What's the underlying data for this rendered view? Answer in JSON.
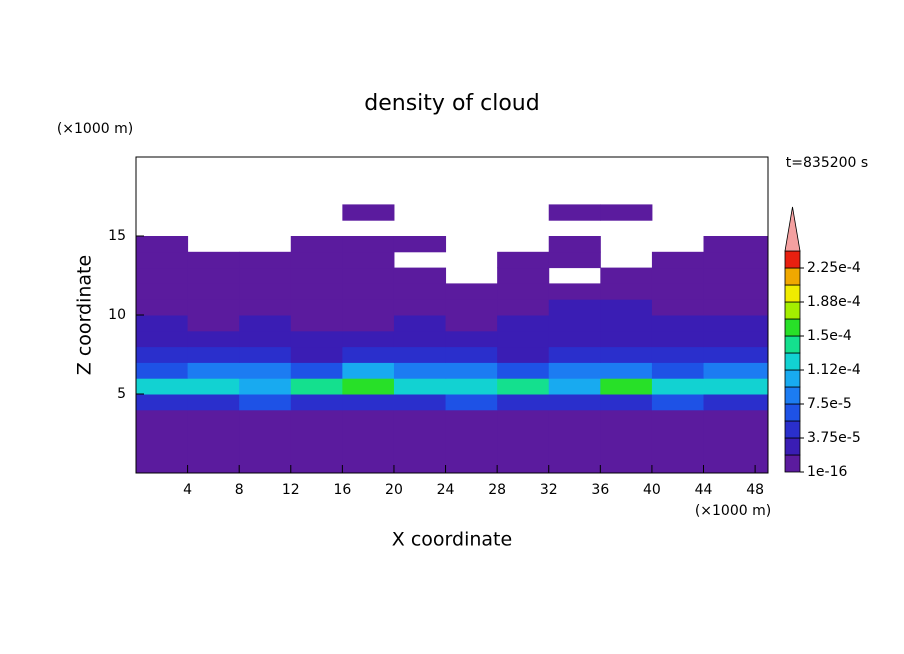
{
  "chart_data": {
    "type": "contour",
    "title": "density of cloud",
    "xlabel": "X coordinate",
    "ylabel": "Z coordinate",
    "x_unit": "(×1000 m)",
    "y_unit": "(×1000 m)",
    "time_label": "t=835200 s",
    "xlim": [
      0,
      49
    ],
    "ylim": [
      0,
      20
    ],
    "xticks": [
      4,
      8,
      12,
      16,
      20,
      24,
      28,
      32,
      36,
      40,
      44,
      48
    ],
    "yticks": [
      5,
      10,
      15
    ],
    "x": [
      2,
      6,
      10,
      14,
      18,
      22,
      26,
      30,
      34,
      38,
      42,
      46
    ],
    "y": [
      3.5,
      4.5,
      5.5,
      6.5,
      7.5,
      8.5,
      9.5,
      10.5,
      11.5,
      12.5,
      13.5,
      14.5,
      15.5,
      16.5,
      17.5
    ],
    "z": [
      [
        2e-06,
        3e-06,
        2e-06,
        2e-06,
        3e-06,
        2e-06,
        2e-06,
        2e-06,
        3e-06,
        2e-06,
        2e-06,
        3e-06
      ],
      [
        5e-05,
        4e-05,
        6e-05,
        5e-05,
        4e-05,
        5e-05,
        6e-05,
        4e-05,
        5e-05,
        4e-05,
        6e-05,
        5e-05
      ],
      [
        0.00013,
        0.00012,
        0.00011,
        0.00014,
        0.00016,
        0.00013,
        0.00012,
        0.00014,
        0.00011,
        0.00015,
        0.00012,
        0.00013
      ],
      [
        7e-05,
        9e-05,
        8e-05,
        7e-05,
        0.0001,
        9e-05,
        8e-05,
        7e-05,
        8e-05,
        9e-05,
        7e-05,
        8e-05
      ],
      [
        4e-05,
        4.5e-05,
        4e-05,
        3.5e-05,
        4e-05,
        4.5e-05,
        4e-05,
        3.5e-05,
        4e-05,
        4.5e-05,
        4e-05,
        4e-05
      ],
      [
        2.5e-05,
        2.2e-05,
        2.5e-05,
        2.2e-05,
        2.4e-05,
        2e-05,
        2.5e-05,
        2.2e-05,
        2.4e-05,
        2.5e-05,
        2.2e-05,
        2.5e-05
      ],
      [
        2e-05,
        1e-05,
        2e-05,
        1.5e-05,
        1e-05,
        2e-05,
        1.5e-05,
        2e-05,
        2e-05,
        2.2e-05,
        2e-05,
        2e-05
      ],
      [
        1e-05,
        1e-05,
        1.5e-05,
        1e-05,
        1e-05,
        1e-05,
        1e-05,
        1.5e-05,
        2e-05,
        2e-05,
        1.5e-05,
        1e-05
      ],
      [
        5e-06,
        5e-06,
        5e-06,
        5e-06,
        5e-06,
        5e-06,
        5e-06,
        5e-06,
        5e-06,
        5e-06,
        5e-06,
        5e-06
      ],
      [
        5e-06,
        5e-06,
        5e-06,
        5e-06,
        5e-06,
        5e-06,
        0,
        5e-06,
        0,
        5e-06,
        5e-06,
        5e-06
      ],
      [
        3e-06,
        3e-06,
        3e-06,
        3e-06,
        3e-06,
        0,
        0,
        3e-06,
        3e-06,
        0,
        3e-06,
        3e-06
      ],
      [
        3e-06,
        0,
        0,
        3e-06,
        3e-06,
        3e-06,
        0,
        0,
        3e-06,
        0,
        0,
        3e-06
      ],
      [
        0,
        0,
        0,
        0,
        0,
        0,
        0,
        0,
        0,
        0,
        0,
        0
      ],
      [
        0,
        0,
        0,
        0,
        2e-06,
        0,
        0,
        0,
        2e-06,
        2e-06,
        0,
        0
      ],
      [
        0,
        0,
        0,
        0,
        0,
        0,
        0,
        0,
        0,
        0,
        0,
        0
      ]
    ],
    "levels": [
      1e-16,
      1.875e-05,
      3.75e-05,
      5.625e-05,
      7.5e-05,
      9.375e-05,
      0.0001125,
      0.00013125,
      0.00015,
      0.00016875,
      0.0001875,
      0.00020625,
      0.000225,
      0.00024375
    ],
    "colors": [
      "#5b1b9e",
      "#3a1db4",
      "#2a2fcc",
      "#1e52e6",
      "#1c7cf2",
      "#18aaf0",
      "#12d2d2",
      "#14e08e",
      "#28e028",
      "#a4ee00",
      "#f0ec00",
      "#f0a800",
      "#e82010"
    ],
    "extend_color": "#f4a0a0",
    "cbar_ticks": [
      {
        "value": 1e-16,
        "label": "1e-16"
      },
      {
        "value": 3.75e-05,
        "label": "3.75e-5"
      },
      {
        "value": 7.5e-05,
        "label": "7.5e-5"
      },
      {
        "value": 0.0001125,
        "label": "1.12e-4"
      },
      {
        "value": 0.00015,
        "label": "1.5e-4"
      },
      {
        "value": 0.0001875,
        "label": "1.88e-4"
      },
      {
        "value": 0.000225,
        "label": "2.25e-4"
      }
    ]
  }
}
